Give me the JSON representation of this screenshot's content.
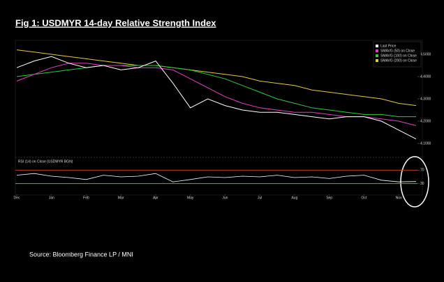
{
  "chart_data": {
    "type": "line",
    "title": "Fig  1:  USDMYR 14-day Relative Strength Index",
    "source": "Source: Bloomberg Finance LP / MNI",
    "categories": [
      "Dec",
      null,
      "Jan",
      null,
      "Feb",
      null,
      "Mar",
      null,
      "Apr",
      null,
      "May",
      null,
      "Jun",
      null,
      "Jul",
      null,
      "Aug",
      null,
      "Sep",
      null,
      "Oct",
      null,
      "Nov",
      null
    ],
    "series": [
      {
        "name": "Last Price",
        "color": "#ffffff",
        "values": [
          4.44,
          4.47,
          4.49,
          4.46,
          4.44,
          4.45,
          4.43,
          4.44,
          4.47,
          4.37,
          4.26,
          4.3,
          4.27,
          4.25,
          4.24,
          4.24,
          4.23,
          4.22,
          4.21,
          4.22,
          4.22,
          4.2,
          4.16,
          4.12
        ]
      },
      {
        "name": "SMAVG (50) on Close",
        "color": "#e040c0",
        "values": [
          4.38,
          4.41,
          4.44,
          4.46,
          4.46,
          4.45,
          4.45,
          4.44,
          4.44,
          4.43,
          4.39,
          4.35,
          4.31,
          4.28,
          4.26,
          4.25,
          4.24,
          4.24,
          4.23,
          4.22,
          4.22,
          4.21,
          4.2,
          4.18
        ]
      },
      {
        "name": "SMAVG (100) on Close",
        "color": "#2ecc40",
        "values": [
          4.4,
          4.41,
          4.42,
          4.43,
          4.44,
          4.45,
          4.45,
          4.45,
          4.45,
          4.44,
          4.43,
          4.41,
          4.39,
          4.36,
          4.33,
          4.3,
          4.28,
          4.26,
          4.25,
          4.24,
          4.23,
          4.23,
          4.22,
          4.22
        ]
      },
      {
        "name": "SMAVG (200) on Close",
        "color": "#e8c840",
        "values": [
          4.52,
          4.51,
          4.5,
          4.49,
          4.48,
          4.47,
          4.46,
          4.45,
          4.45,
          4.44,
          4.43,
          4.42,
          4.41,
          4.4,
          4.38,
          4.37,
          4.36,
          4.34,
          4.33,
          4.32,
          4.31,
          4.3,
          4.28,
          4.27
        ]
      }
    ],
    "ylim": [
      4.05,
      4.55
    ],
    "yticks": [
      {
        "value": 4.1,
        "label": "4.1000"
      },
      {
        "value": 4.2,
        "label": "4.2000"
      },
      {
        "value": 4.3,
        "label": "4.3000"
      },
      {
        "value": 4.4,
        "label": "4.4000"
      },
      {
        "value": 4.5,
        "label": "4.5000"
      }
    ],
    "rsi": {
      "name": "RSI (14) on Close (USDMYR BGN)",
      "color": "#ffffff",
      "values": [
        55,
        60,
        52,
        48,
        42,
        55,
        50,
        52,
        60,
        35,
        42,
        50,
        48,
        52,
        50,
        55,
        48,
        50,
        45,
        52,
        55,
        40,
        35,
        36
      ],
      "ylim": [
        0,
        100
      ],
      "yticks": [
        30,
        70
      ],
      "overbought": 70,
      "oversold": 30,
      "overbought_color": "#c0392b",
      "oversold_color": "#2ecc40"
    }
  }
}
